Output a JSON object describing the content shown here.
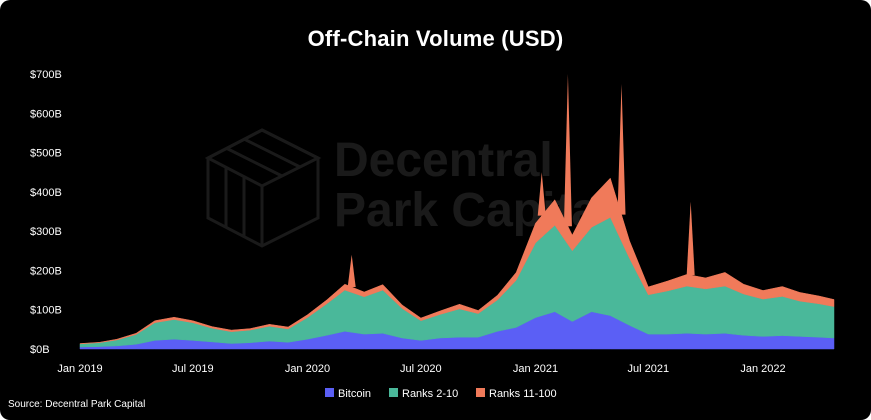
{
  "source": "Source: Decentral Park Capital",
  "watermark": {
    "line1": "Decentral",
    "line2": "Park Capital"
  },
  "colors": {
    "background": "#000000",
    "bitcoin": "#5b5ff5",
    "ranks_2_10": "#4ab89a",
    "ranks_11_100": "#f07a5a"
  },
  "chart_data": {
    "type": "area",
    "stacked": true,
    "title": "Off-Chain Volume (USD)",
    "xlabel": "",
    "ylabel": "",
    "ylim": [
      0,
      700
    ],
    "y_unit": "billion USD",
    "y_ticks": [
      "$0B",
      "$100B",
      "$200B",
      "$300B",
      "$400B",
      "$500B",
      "$600B",
      "$700B"
    ],
    "y_tick_values": [
      0,
      100,
      200,
      300,
      400,
      500,
      600,
      700
    ],
    "x_ticks": [
      "Jan 2019",
      "Jul 2019",
      "Jan 2020",
      "Jul 2020",
      "Jan 2021",
      "Jul 2021",
      "Jan 2022"
    ],
    "x_tick_dates": [
      "2019-01-01",
      "2019-07-01",
      "2020-01-01",
      "2020-07-01",
      "2021-01-01",
      "2021-07-01",
      "2022-01-01"
    ],
    "x_range": [
      "2019-01-01",
      "2022-04-25"
    ],
    "legend_position": "bottom-center",
    "grid": false,
    "x": [
      "2019-01-01",
      "2019-02-01",
      "2019-03-01",
      "2019-04-01",
      "2019-05-01",
      "2019-06-01",
      "2019-07-01",
      "2019-08-01",
      "2019-09-01",
      "2019-10-01",
      "2019-11-01",
      "2019-12-01",
      "2020-01-01",
      "2020-02-01",
      "2020-03-01",
      "2020-04-01",
      "2020-05-01",
      "2020-06-01",
      "2020-07-01",
      "2020-08-01",
      "2020-09-01",
      "2020-10-01",
      "2020-11-01",
      "2020-12-01",
      "2021-01-01",
      "2021-02-01",
      "2021-03-01",
      "2021-04-01",
      "2021-05-01",
      "2021-06-01",
      "2021-07-01",
      "2021-08-01",
      "2021-09-01",
      "2021-10-01",
      "2021-11-01",
      "2021-12-01",
      "2022-01-01",
      "2022-02-01",
      "2022-03-01",
      "2022-04-01",
      "2022-04-25"
    ],
    "series": [
      {
        "name": "Bitcoin",
        "color": "#5b5ff5",
        "values": [
          5,
          6,
          8,
          12,
          22,
          25,
          22,
          18,
          14,
          16,
          20,
          17,
          25,
          35,
          45,
          38,
          40,
          28,
          22,
          28,
          30,
          30,
          45,
          55,
          80,
          95,
          70,
          95,
          85,
          60,
          38,
          38,
          40,
          38,
          40,
          35,
          32,
          34,
          32,
          30,
          28
        ]
      },
      {
        "name": "Ranks 2-10",
        "color": "#4ab89a",
        "values": [
          8,
          10,
          15,
          25,
          45,
          50,
          45,
          35,
          30,
          32,
          38,
          34,
          55,
          80,
          105,
          95,
          110,
          75,
          50,
          60,
          72,
          60,
          80,
          120,
          190,
          220,
          180,
          215,
          250,
          170,
          100,
          110,
          120,
          115,
          120,
          105,
          95,
          100,
          90,
          85,
          80
        ]
      },
      {
        "name": "Ranks 11-100",
        "color": "#f07a5a",
        "values": [
          1,
          1,
          2,
          3,
          5,
          6,
          5,
          4,
          4,
          4,
          5,
          5,
          7,
          10,
          15,
          12,
          14,
          9,
          7,
          9,
          12,
          8,
          12,
          20,
          50,
          65,
          40,
          75,
          100,
          45,
          20,
          25,
          30,
          28,
          35,
          25,
          22,
          25,
          22,
          20,
          18
        ]
      }
    ],
    "notable_peaks_billion": [
      {
        "date": "2020-03-12",
        "value": 240
      },
      {
        "date": "2021-01-11",
        "value": 450
      },
      {
        "date": "2021-02-22",
        "value": 700
      },
      {
        "date": "2021-05-19",
        "value": 675
      },
      {
        "date": "2021-09-07",
        "value": 375
      }
    ]
  }
}
